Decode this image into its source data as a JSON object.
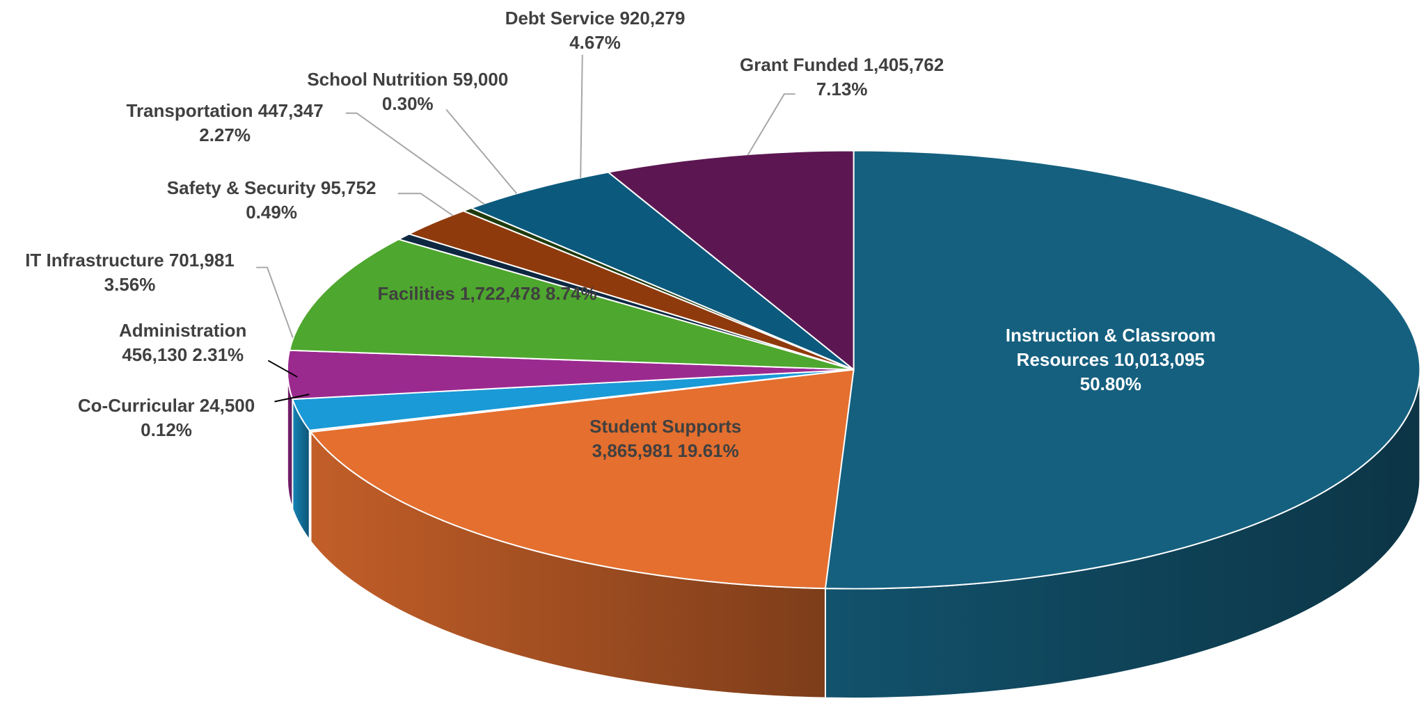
{
  "chart_data": {
    "type": "pie",
    "categories": [
      "Instruction & Classroom Resources",
      "Student Supports",
      "Co-Curricular",
      "Administration",
      "IT Infrastructure",
      "Facilities",
      "Safety & Security",
      "Transportation",
      "School Nutrition",
      "Debt Service",
      "Grant Funded"
    ],
    "values": [
      10013095,
      3865981,
      24500,
      456130,
      701981,
      1722478,
      95752,
      447347,
      59000,
      920279,
      1405762
    ],
    "value_labels": [
      "10,013,095",
      "3,865,981",
      "24,500",
      "456,130",
      "701,981",
      "1,722,478",
      "95,752",
      "447,347",
      "59,000",
      "920,279",
      "1,405,762"
    ],
    "percent_labels": [
      "50.80%",
      "19.61%",
      "0.12%",
      "2.31%",
      "3.56%",
      "8.74%",
      "0.49%",
      "2.27%",
      "0.30%",
      "4.67%",
      "7.13%"
    ],
    "colors": [
      "#15607f",
      "#e46f2f",
      "#d9d9c8",
      "#1a9ad6",
      "#9b2a8f",
      "#4ea72e",
      "#0e2841",
      "#8f3a0c",
      "#1f3b0e",
      "#0b5a7d",
      "#5c1752"
    ]
  }
}
